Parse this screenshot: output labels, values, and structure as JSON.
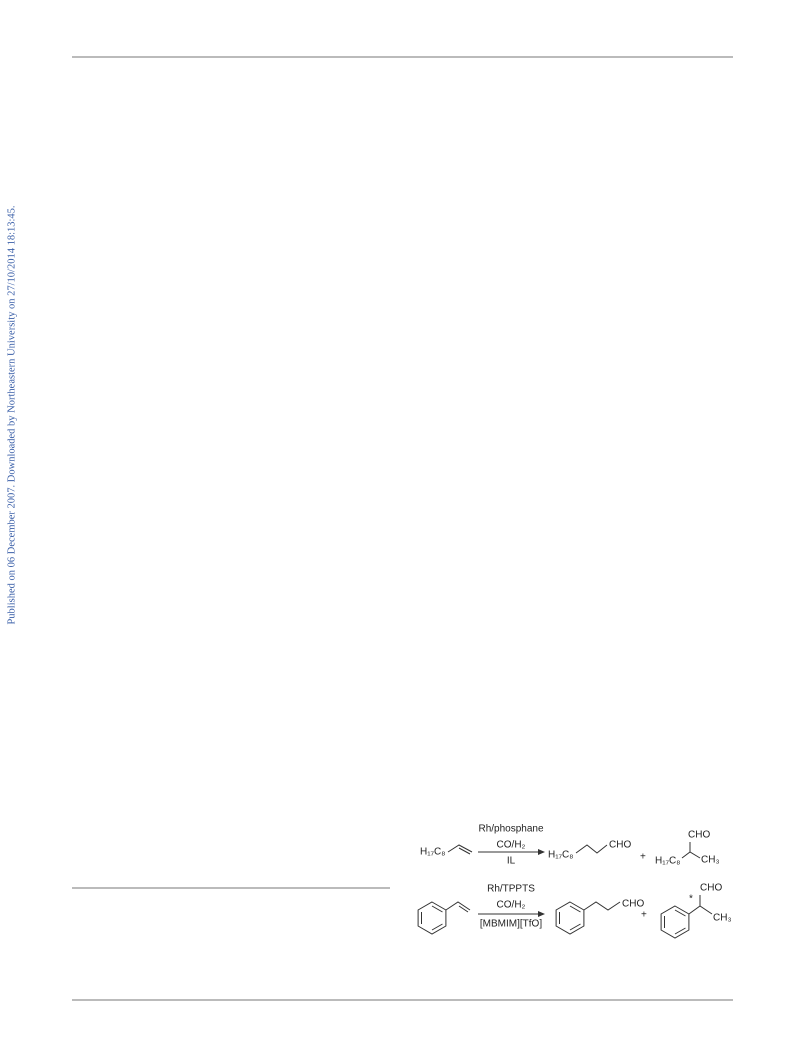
{
  "side_note": "Published on 06 December 2007. Downloaded by Northeastern University on 27/10/2014 18:13:45.",
  "scheme": {
    "reaction_1": {
      "reactant": "H₁₇C₈",
      "catalyst": "Rh/phosphane",
      "gas": "CO/H₂",
      "solvent": "IL",
      "linear_chain": "H₁₇C₈",
      "linear_aldehyde": "CHO",
      "plus": "+",
      "branched_aldehyde": "CHO",
      "branched_chain": "H₁₇C₈",
      "branched_methyl": "CH₃"
    },
    "reaction_2": {
      "catalyst": "Rh/TPPTS",
      "gas": "CO/H₂",
      "solvent": "[MBMIM][TfO]",
      "linear_aldehyde": "CHO",
      "plus": "+",
      "branched_aldehyde": "CHO",
      "stereo_mark": "*",
      "branched_methyl": "CH₃"
    }
  }
}
